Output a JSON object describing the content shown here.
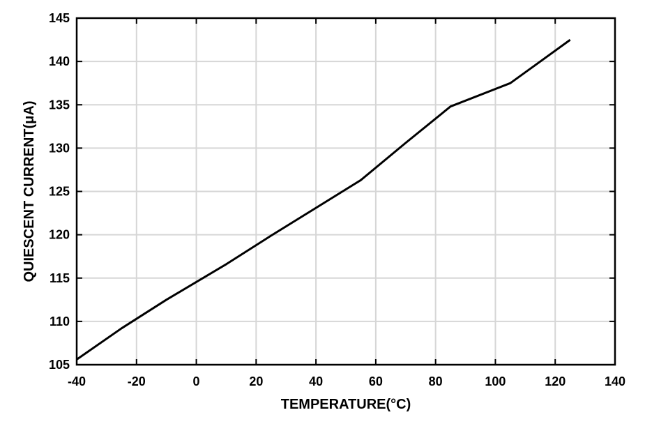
{
  "chart_data": {
    "type": "line",
    "title": "",
    "xlabel": "TEMPERATURE(°C)",
    "ylabel": "QUIESCENT CURRENT(μA)",
    "xlim": [
      -40,
      140
    ],
    "ylim": [
      105,
      145
    ],
    "xticks": [
      "-40",
      "-20",
      "0",
      "20",
      "40",
      "60",
      "80",
      "100",
      "120",
      "140"
    ],
    "yticks": [
      "105",
      "110",
      "115",
      "120",
      "125",
      "130",
      "135",
      "140",
      "145"
    ],
    "grid": true,
    "series": [
      {
        "color": "#000000",
        "x": [
          -40,
          -25,
          -10,
          10,
          25,
          40,
          55,
          70,
          85,
          105,
          125
        ],
        "y": [
          105.6,
          109.2,
          112.5,
          116.6,
          119.9,
          123.1,
          126.3,
          130.6,
          134.8,
          137.5,
          142.5
        ]
      }
    ]
  }
}
